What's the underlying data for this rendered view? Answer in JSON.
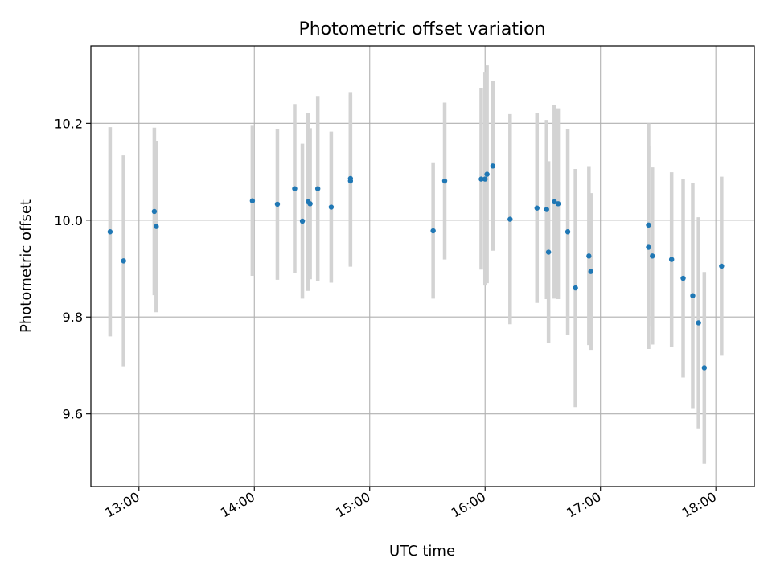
{
  "chart_data": {
    "type": "scatter",
    "title": "Photometric offset variation",
    "xlabel": "UTC time",
    "ylabel": "Photometric offset",
    "x_tick_labels": [
      "13:00",
      "14:00",
      "15:00",
      "16:00",
      "17:00",
      "18:00"
    ],
    "y_tick_labels": [
      "9.6",
      "9.8",
      "10.0",
      "10.2"
    ],
    "y_ticks": [
      9.6,
      9.8,
      10.0,
      10.2
    ],
    "xlim": [
      "12:35",
      "18:20"
    ],
    "ylim": [
      9.45,
      10.36
    ],
    "grid": true,
    "point_color": "#1f77b4",
    "errorbar_color": "#d3d3d3",
    "points": [
      {
        "x": "12:45",
        "y": 9.976,
        "yerr": 0.216
      },
      {
        "x": "12:52",
        "y": 9.916,
        "yerr": 0.218
      },
      {
        "x": "13:08",
        "y": 10.018,
        "yerr": 0.173
      },
      {
        "x": "13:09",
        "y": 9.987,
        "yerr": 0.177
      },
      {
        "x": "13:59",
        "y": 10.04,
        "yerr": 0.155
      },
      {
        "x": "14:12",
        "y": 10.033,
        "yerr": 0.156
      },
      {
        "x": "14:21",
        "y": 10.065,
        "yerr": 0.175
      },
      {
        "x": "14:25",
        "y": 9.998,
        "yerr": 0.16
      },
      {
        "x": "14:28",
        "y": 10.038,
        "yerr": 0.184
      },
      {
        "x": "14:29",
        "y": 10.034,
        "yerr": 0.156
      },
      {
        "x": "14:33",
        "y": 10.065,
        "yerr": 0.19
      },
      {
        "x": "14:40",
        "y": 10.027,
        "yerr": 0.156
      },
      {
        "x": "14:50",
        "y": 10.081,
        "yerr": 0.177
      },
      {
        "x": "14:50",
        "y": 10.086,
        "yerr": 0.177
      },
      {
        "x": "15:33",
        "y": 9.978,
        "yerr": 0.14
      },
      {
        "x": "15:39",
        "y": 10.081,
        "yerr": 0.162
      },
      {
        "x": "15:58",
        "y": 10.085,
        "yerr": 0.187
      },
      {
        "x": "16:00",
        "y": 10.085,
        "yerr": 0.22
      },
      {
        "x": "16:01",
        "y": 10.095,
        "yerr": 0.225
      },
      {
        "x": "16:04",
        "y": 10.112,
        "yerr": 0.175
      },
      {
        "x": "16:13",
        "y": 10.002,
        "yerr": 0.217
      },
      {
        "x": "16:27",
        "y": 10.025,
        "yerr": 0.196
      },
      {
        "x": "16:32",
        "y": 10.022,
        "yerr": 0.185
      },
      {
        "x": "16:33",
        "y": 9.934,
        "yerr": 0.188
      },
      {
        "x": "16:36",
        "y": 10.038,
        "yerr": 0.2
      },
      {
        "x": "16:38",
        "y": 10.034,
        "yerr": 0.197
      },
      {
        "x": "16:43",
        "y": 9.976,
        "yerr": 0.213
      },
      {
        "x": "16:47",
        "y": 9.86,
        "yerr": 0.246
      },
      {
        "x": "16:54",
        "y": 9.926,
        "yerr": 0.184
      },
      {
        "x": "16:55",
        "y": 9.894,
        "yerr": 0.162
      },
      {
        "x": "17:25",
        "y": 9.944,
        "yerr": 0.21
      },
      {
        "x": "17:25",
        "y": 9.99,
        "yerr": 0.21
      },
      {
        "x": "17:27",
        "y": 9.926,
        "yerr": 0.183
      },
      {
        "x": "17:37",
        "y": 9.919,
        "yerr": 0.18
      },
      {
        "x": "17:43",
        "y": 9.88,
        "yerr": 0.205
      },
      {
        "x": "17:48",
        "y": 9.844,
        "yerr": 0.232
      },
      {
        "x": "17:51",
        "y": 9.788,
        "yerr": 0.218
      },
      {
        "x": "17:54",
        "y": 9.695,
        "yerr": 0.198
      },
      {
        "x": "18:03",
        "y": 9.905,
        "yerr": 0.185
      }
    ]
  }
}
